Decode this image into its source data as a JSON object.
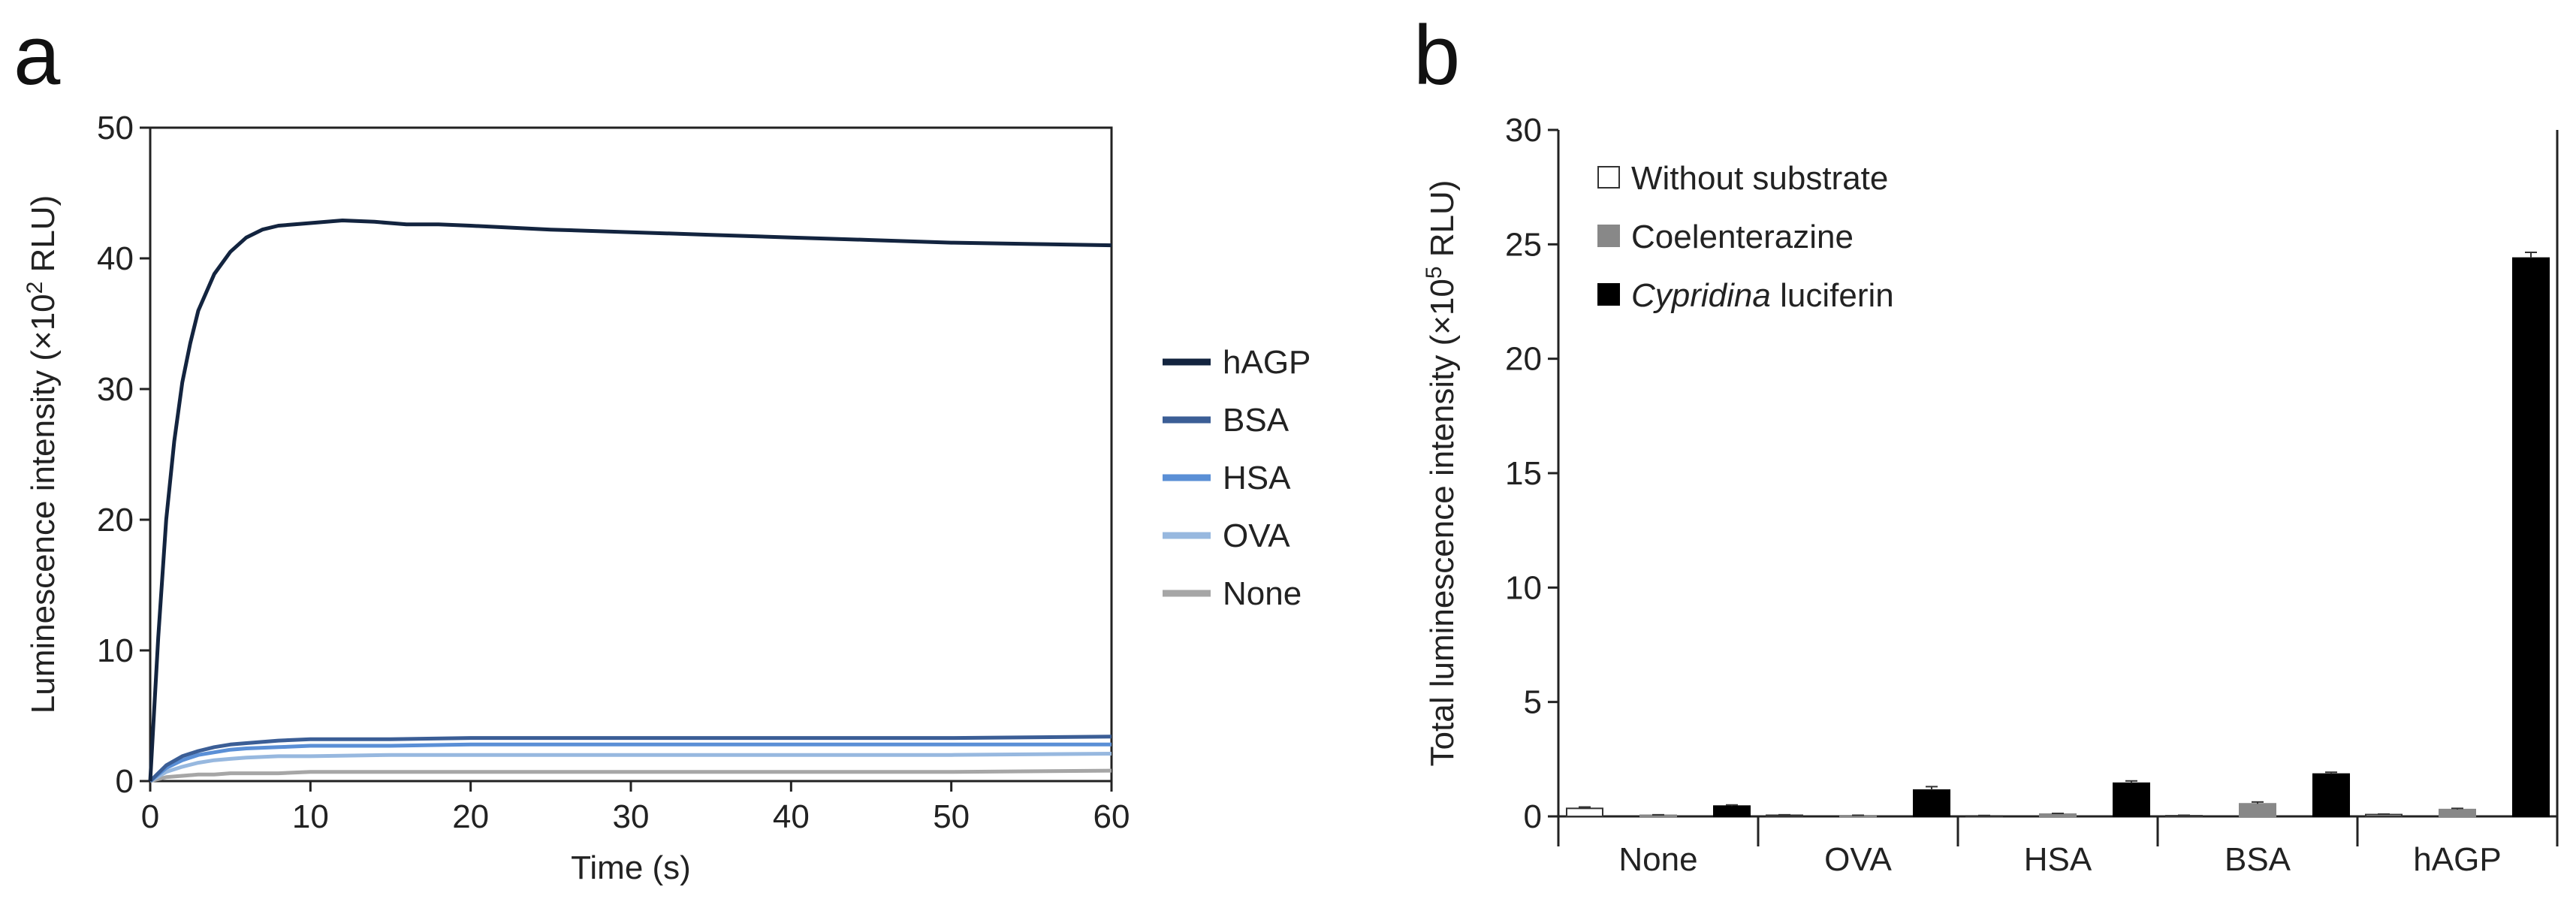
{
  "panels": {
    "a": "a",
    "b": "b"
  },
  "chart_data": [
    {
      "type": "line",
      "xlabel": "Time (s)",
      "ylabel_prefix": "Luminescence intensity (×10",
      "ylabel_sup": "2",
      "ylabel_suffix": " RLU)",
      "xlim": [
        0,
        60
      ],
      "ylim": [
        0,
        50
      ],
      "xticks": [
        0,
        10,
        20,
        30,
        40,
        50,
        60
      ],
      "yticks": [
        0,
        10,
        20,
        30,
        40,
        50
      ],
      "legend_position": "right",
      "series": [
        {
          "name": "hAGP",
          "color": "#13243f",
          "x": [
            0,
            0.5,
            1,
            1.5,
            2,
            2.5,
            3,
            4,
            5,
            6,
            7,
            8,
            9,
            10,
            12,
            14,
            16,
            18,
            20,
            25,
            30,
            35,
            40,
            45,
            50,
            55,
            60
          ],
          "y": [
            0,
            11,
            20,
            26,
            30.5,
            33.5,
            36,
            38.8,
            40.5,
            41.6,
            42.2,
            42.5,
            42.6,
            42.7,
            42.9,
            42.8,
            42.6,
            42.6,
            42.5,
            42.2,
            42,
            41.8,
            41.6,
            41.4,
            41.2,
            41.1,
            41
          ]
        },
        {
          "name": "BSA",
          "color": "#3b5e96",
          "x": [
            0,
            1,
            2,
            3,
            4,
            5,
            6,
            8,
            10,
            15,
            20,
            30,
            40,
            50,
            60
          ],
          "y": [
            0,
            1.2,
            1.9,
            2.3,
            2.6,
            2.8,
            2.9,
            3.1,
            3.2,
            3.2,
            3.3,
            3.3,
            3.3,
            3.3,
            3.4
          ]
        },
        {
          "name": "HSA",
          "color": "#5a8fd6",
          "x": [
            0,
            1,
            2,
            3,
            4,
            5,
            6,
            8,
            10,
            15,
            20,
            30,
            40,
            50,
            60
          ],
          "y": [
            0,
            1,
            1.6,
            2,
            2.2,
            2.4,
            2.5,
            2.6,
            2.7,
            2.7,
            2.8,
            2.8,
            2.8,
            2.8,
            2.8
          ]
        },
        {
          "name": "OVA",
          "color": "#97b8df",
          "x": [
            0,
            1,
            2,
            3,
            4,
            5,
            6,
            8,
            10,
            15,
            20,
            30,
            40,
            50,
            60
          ],
          "y": [
            0,
            0.7,
            1.1,
            1.4,
            1.6,
            1.7,
            1.8,
            1.9,
            1.9,
            2,
            2,
            2,
            2,
            2,
            2.1
          ]
        },
        {
          "name": "None",
          "color": "#a6a6a6",
          "x": [
            0,
            1,
            2,
            3,
            4,
            5,
            6,
            8,
            10,
            15,
            20,
            30,
            40,
            50,
            60
          ],
          "y": [
            0,
            0.3,
            0.4,
            0.5,
            0.5,
            0.6,
            0.6,
            0.6,
            0.7,
            0.7,
            0.7,
            0.7,
            0.7,
            0.7,
            0.8
          ]
        }
      ]
    },
    {
      "type": "bar",
      "ylabel_prefix": "Total luminescence intensity (×10",
      "ylabel_sup": "5",
      "ylabel_suffix": " RLU)",
      "ylim": [
        0,
        30
      ],
      "yticks": [
        0,
        5,
        10,
        15,
        20,
        25,
        30
      ],
      "categories": [
        "None",
        "OVA",
        "HSA",
        "BSA",
        "hAGP"
      ],
      "legend_position": "top-left",
      "series": [
        {
          "name": "Without substrate",
          "fill": "#ffffff",
          "stroke": "#333333",
          "values": [
            0.35,
            0.05,
            0.02,
            0.03,
            0.08
          ],
          "errors": [
            0.06,
            0.02,
            0.02,
            0.02,
            0.02
          ]
        },
        {
          "name": "Coelenterazine",
          "fill": "#888888",
          "stroke": "#888888",
          "values": [
            0.05,
            0.03,
            0.1,
            0.55,
            0.3
          ],
          "errors": [
            0.02,
            0.02,
            0.03,
            0.08,
            0.05
          ]
        },
        {
          "name_prefix": "Cypridina",
          "name_suffix": " luciferin",
          "fill": "#000000",
          "stroke": "#000000",
          "values": [
            0.45,
            1.15,
            1.45,
            1.85,
            24.4
          ],
          "errors": [
            0.05,
            0.15,
            0.1,
            0.08,
            0.25
          ]
        }
      ]
    }
  ]
}
